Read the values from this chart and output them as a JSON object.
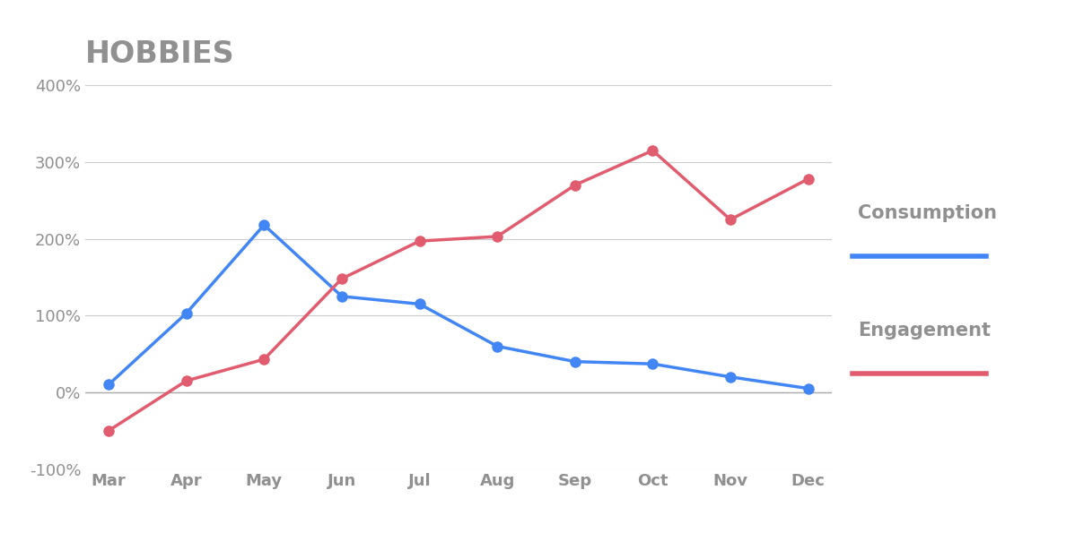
{
  "title": "HOBBIES",
  "months": [
    "Mar",
    "Apr",
    "May",
    "Jun",
    "Jul",
    "Aug",
    "Sep",
    "Oct",
    "Nov",
    "Dec"
  ],
  "consumption": [
    10,
    103,
    218,
    125,
    115,
    60,
    40,
    37,
    20,
    5
  ],
  "engagement": [
    -50,
    15,
    43,
    148,
    197,
    203,
    270,
    315,
    225,
    278
  ],
  "consumption_color": "#4285F4",
  "engagement_color": "#E05C6E",
  "ylim": [
    -100,
    400
  ],
  "yticks": [
    -100,
    0,
    100,
    200,
    300,
    400
  ],
  "background_color": "#ffffff",
  "grid_color": "#cccccc",
  "title_color": "#909090",
  "label_color": "#909090",
  "title_fontsize": 24,
  "tick_fontsize": 13,
  "legend_label_fontsize": 15,
  "line_width": 2.5,
  "marker_size": 8
}
